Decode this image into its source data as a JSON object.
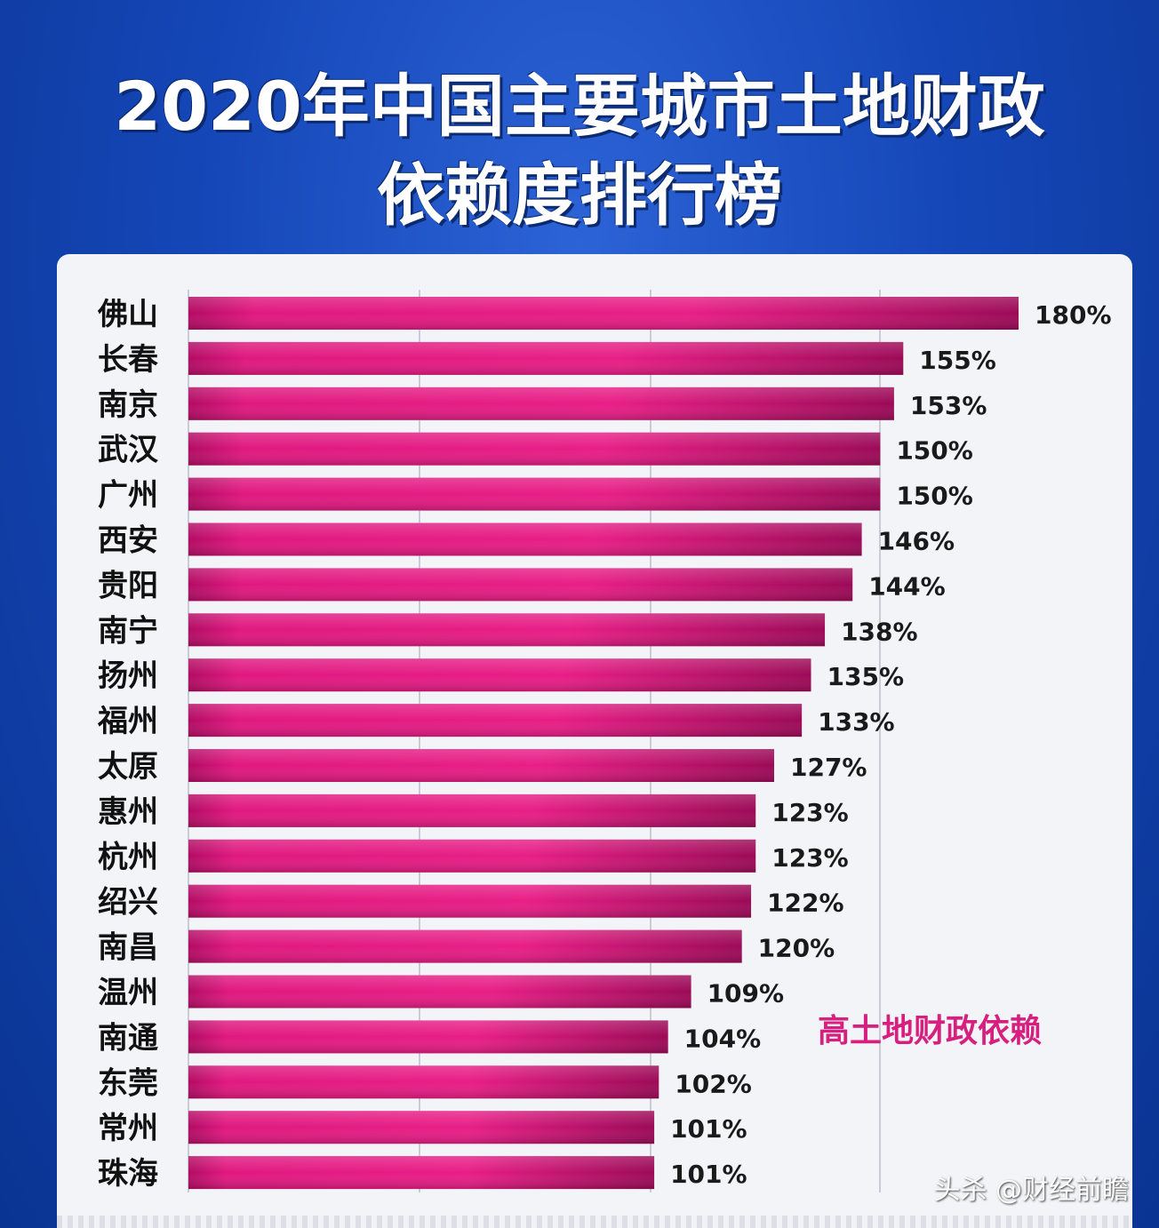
{
  "title": {
    "line1": "2020年中国主要城市土地财政",
    "line2": "依赖度排行榜"
  },
  "annotation": "高土地财政依赖",
  "watermark": "头杀 @财经前瞻",
  "colors": {
    "background": "#1547b8",
    "bar": "#d6167a",
    "annotation": "#d61f7f"
  },
  "chart_data": {
    "type": "bar",
    "orientation": "horizontal",
    "categories": [
      "佛山",
      "长春",
      "南京",
      "武汉",
      "广州",
      "西安",
      "贵阳",
      "南宁",
      "扬州",
      "福州",
      "太原",
      "惠州",
      "杭州",
      "绍兴",
      "南昌",
      "温州",
      "南通",
      "东莞",
      "常州",
      "珠海"
    ],
    "values": [
      180,
      155,
      153,
      150,
      150,
      146,
      144,
      138,
      135,
      133,
      127,
      123,
      123,
      122,
      120,
      109,
      104,
      102,
      101,
      101
    ],
    "labels": [
      "180%",
      "155%",
      "153%",
      "150%",
      "150%",
      "146%",
      "144%",
      "138%",
      "135%",
      "133%",
      "127%",
      "123%",
      "123%",
      "122%",
      "120%",
      "109%",
      "104%",
      "102%",
      "101%",
      "101%"
    ],
    "unit": "%",
    "xlim": [
      0,
      180
    ],
    "grid": true
  }
}
